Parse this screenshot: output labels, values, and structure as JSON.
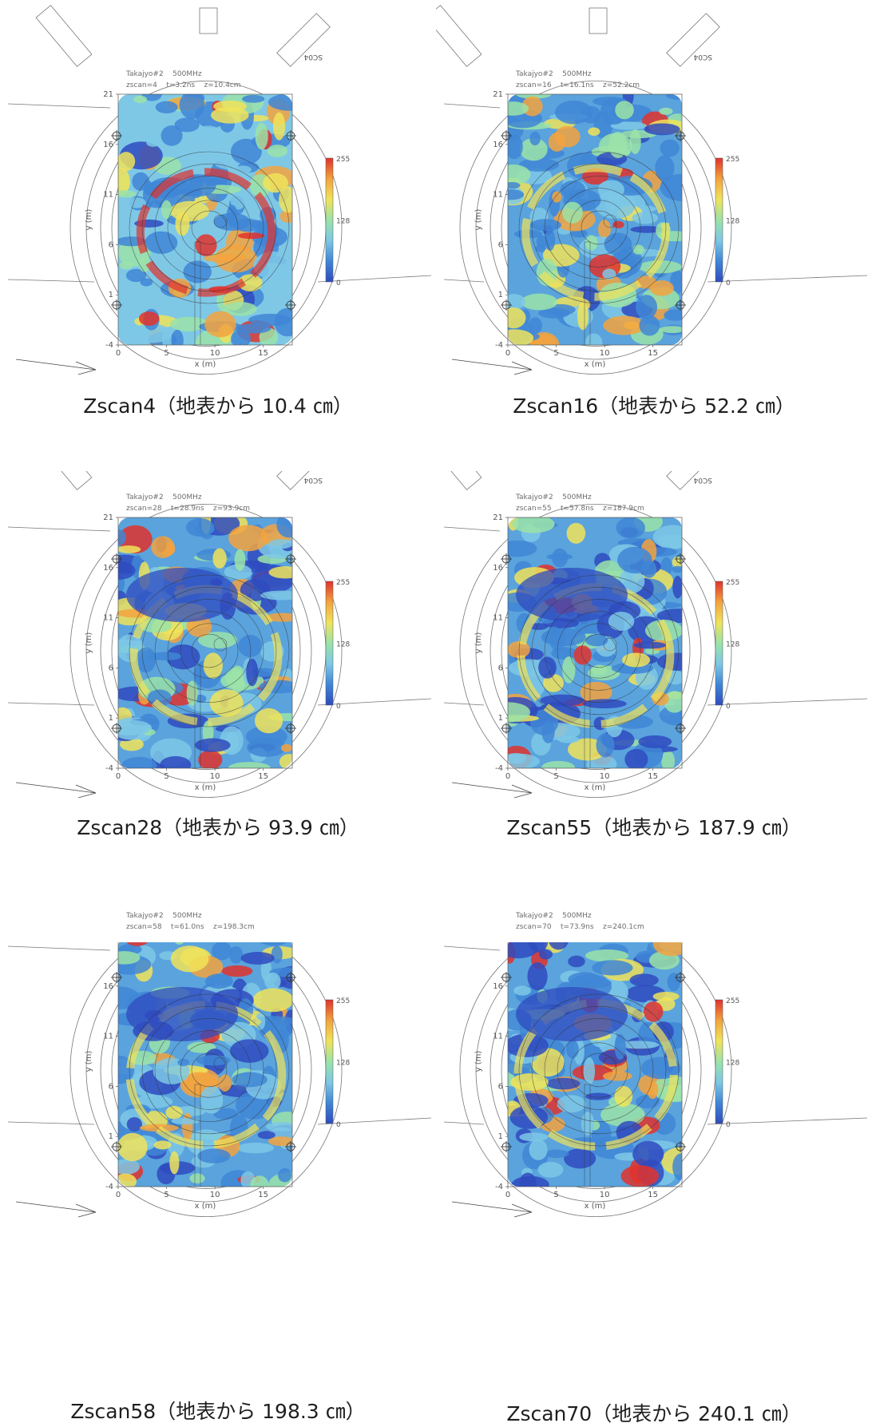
{
  "common": {
    "survey_label": "Takajyo#2",
    "frequency": "500MHz",
    "x_axis_label": "x (m)",
    "y_axis_label": "y (m)",
    "x_ticks": [
      "0",
      "5",
      "10",
      "15"
    ],
    "y_ticks": [
      "21",
      "16",
      "11",
      "6",
      "1",
      "-4"
    ],
    "colorbar_ticks": [
      "255",
      "128",
      "0"
    ],
    "feature_code": "SC04",
    "colormap": [
      "#2f4bbf",
      "#3f86d6",
      "#7ec8e6",
      "#9be3a8",
      "#f0e35a",
      "#f3a33e",
      "#e0322d"
    ]
  },
  "panels": [
    {
      "caption": "Zscan4（地表から 10.4 ㎝）",
      "zscan": "zscan=4",
      "t": "t=3.2ns",
      "z": "z=10.4cm",
      "level": 0.15
    },
    {
      "caption": "Zscan16（地表から 52.2 ㎝）",
      "zscan": "zscan=16",
      "t": "t=16.1ns",
      "z": "z=52.2cm",
      "level": 0.35
    },
    {
      "caption": "Zscan28（地表から 93.9 ㎝）",
      "zscan": "zscan=28",
      "t": "t=28.9ns",
      "z": "z=93.9cm",
      "level": 0.45
    },
    {
      "caption": "Zscan55（地表から 187.9 ㎝）",
      "zscan": "zscan=55",
      "t": "t=57.8ns",
      "z": "z=187.9cm",
      "level": 0.55
    },
    {
      "caption": "Zscan58（地表から 198.3 ㎝）",
      "zscan": "zscan=58",
      "t": "t=61.0ns",
      "z": "z=198.3cm",
      "level": 0.62
    },
    {
      "caption": "Zscan70（地表から 240.1 ㎝）",
      "zscan": "zscan=70",
      "t": "t=73.9ns",
      "z": "z=240.1cm",
      "level": 0.7
    }
  ]
}
